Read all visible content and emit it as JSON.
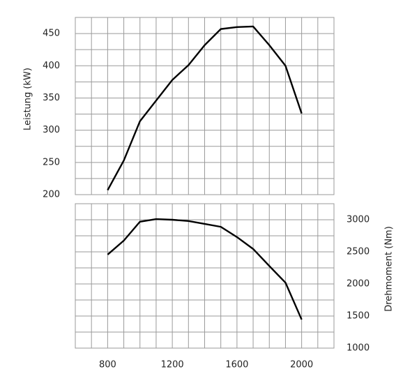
{
  "chart_data": [
    {
      "type": "line",
      "ylabel": "Leistung (kW)",
      "yaxis_side": "left",
      "show_xtick_labels": false,
      "x": [
        800,
        900,
        1000,
        1100,
        1200,
        1300,
        1400,
        1500,
        1600,
        1700,
        1800,
        1900,
        2000
      ],
      "values": [
        207,
        253,
        314,
        346,
        378,
        401,
        432,
        457,
        460,
        461,
        432,
        400,
        326
      ],
      "color": "#000000",
      "xlim": [
        600,
        2200
      ],
      "xticks": [
        800,
        1200,
        1600,
        2000
      ],
      "ylim": [
        200,
        475
      ],
      "yticks": [
        200,
        250,
        300,
        350,
        400,
        450
      ],
      "grid": true
    },
    {
      "type": "line",
      "ylabel": "Drehmoment (Nm)",
      "yaxis_side": "right",
      "show_xtick_labels": true,
      "x": [
        800,
        900,
        1000,
        1100,
        1200,
        1300,
        1400,
        1500,
        1600,
        1700,
        1800,
        1900,
        2000
      ],
      "values": [
        2457,
        2675,
        2970,
        3010,
        3000,
        2980,
        2935,
        2890,
        2730,
        2545,
        2280,
        2020,
        1445
      ],
      "color": "#000000",
      "xlim": [
        600,
        2200
      ],
      "xticks": [
        800,
        1200,
        1600,
        2000
      ],
      "ylim": [
        1000,
        3250
      ],
      "yticks": [
        1000,
        1500,
        2000,
        2500,
        3000
      ],
      "grid": true
    }
  ]
}
